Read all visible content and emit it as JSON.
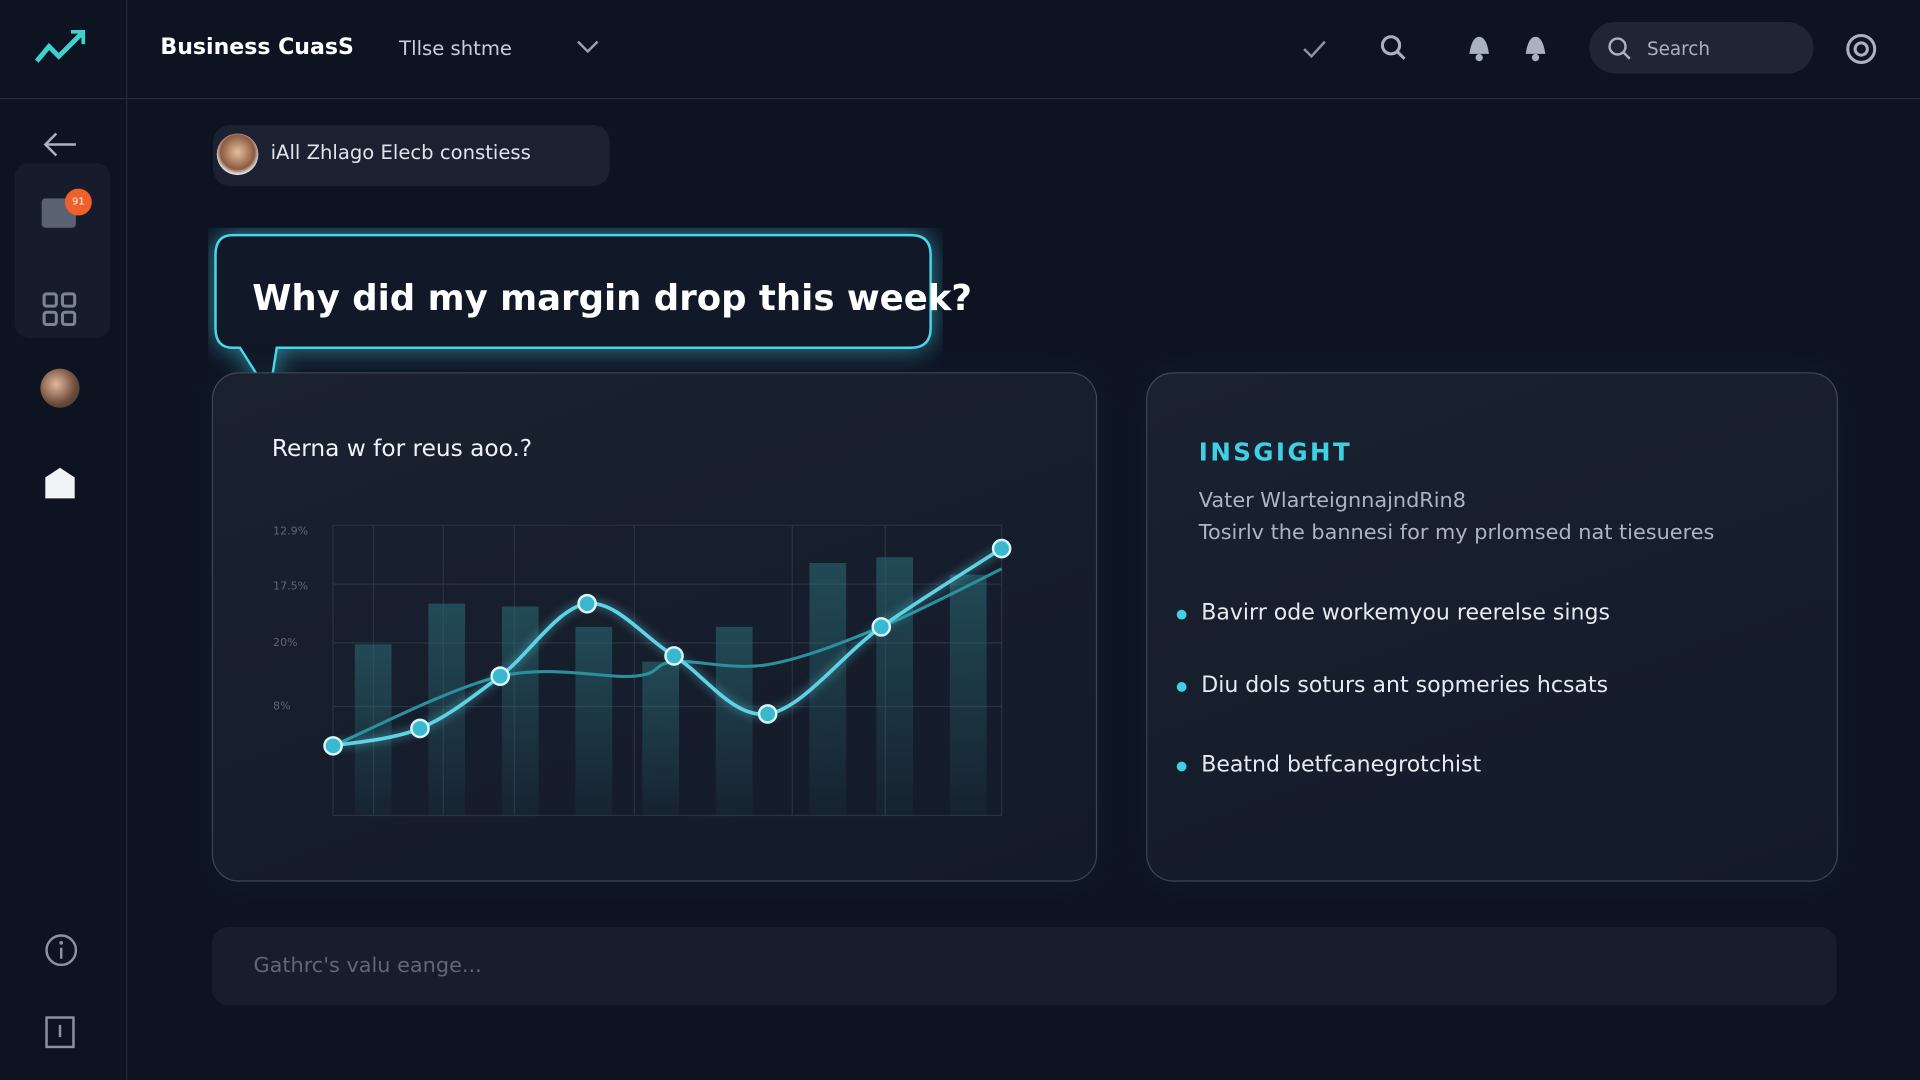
{
  "header": {
    "brand": "Business CuasS",
    "dropdown": "Tllse shtme",
    "search": "Search"
  },
  "sidebar": {
    "badge": "91"
  },
  "user_pill": "iAll Zhlago Elecb constiess",
  "question": "Why did my margin drop this week?",
  "chart_data": {
    "type": "line",
    "title": "Rerna w for reus aoo.?",
    "tick_labels": [
      "12.9%",
      "17.5%",
      "20%",
      "8%"
    ],
    "xlim": [
      0,
      100
    ],
    "ylim": [
      0,
      100
    ],
    "bars": {
      "color": "#2a6f78",
      "x": [
        6,
        17,
        28,
        39,
        49,
        60,
        74,
        84,
        95
      ],
      "values": [
        59,
        73,
        72,
        65,
        53,
        65,
        87,
        89,
        83
      ]
    },
    "series": [
      {
        "color": "#5fd3e6",
        "x": [
          0,
          13,
          25,
          38,
          51,
          65,
          82,
          100
        ],
        "values": [
          24,
          30,
          48,
          73,
          55,
          35,
          65,
          92
        ]
      },
      {
        "color": "#2b8f9c",
        "x": [
          0,
          25,
          45,
          51,
          65,
          82,
          100
        ],
        "values": [
          24,
          48,
          48,
          53,
          52,
          65,
          85
        ]
      }
    ]
  },
  "insight": {
    "heading": "INSGIGHT",
    "lines": [
      "Vater WlarteignnajndRin8",
      "Tosirlv the bannesi for my prlomsed nat tiesueres"
    ],
    "bullets": [
      "Bavirr ode workemyou reerelse sings",
      "Diu dols soturs ant sopmeries hcsats",
      "Beatnd betfcanegrotchist"
    ]
  },
  "input_placeholder": "Gathrc's valu eange..."
}
